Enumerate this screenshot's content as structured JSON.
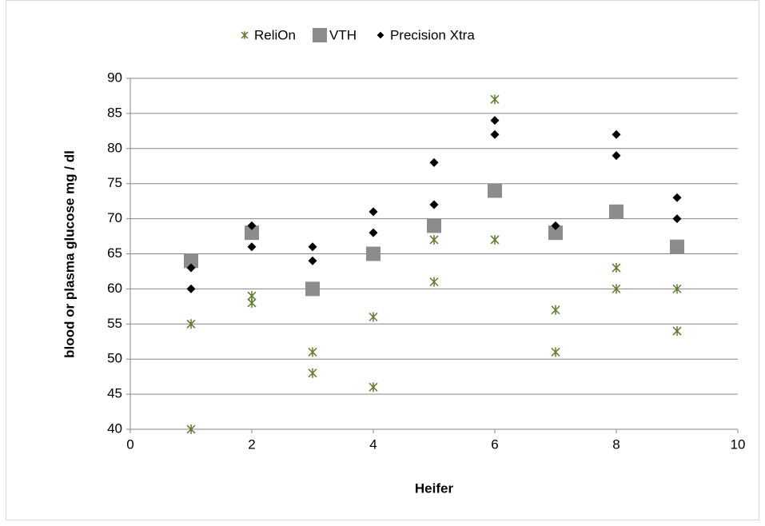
{
  "chart_data": {
    "type": "scatter",
    "x_label": "Heifer",
    "y_label": "blood or plasma glucose mg / dl",
    "xlim": [
      0,
      10
    ],
    "xticks": [
      0,
      2,
      4,
      6,
      8,
      10
    ],
    "ylim": [
      40,
      90
    ],
    "yticks": [
      40,
      45,
      50,
      55,
      60,
      65,
      70,
      75,
      80,
      85,
      90
    ],
    "grid": true,
    "legend": "top",
    "series": [
      {
        "name": "ReliOn",
        "color": "#5f7a30",
        "marker": "star",
        "x": [
          1,
          1,
          2,
          2,
          3,
          3,
          4,
          4,
          5,
          5,
          6,
          6,
          7,
          7,
          8,
          8,
          9,
          9
        ],
        "values": [
          55,
          40,
          59,
          58,
          51,
          48,
          56,
          46,
          67,
          61,
          87,
          67,
          57,
          51,
          63,
          60,
          60,
          54
        ]
      },
      {
        "name": "VTH",
        "color": "#8c8c8c",
        "marker": "square",
        "x": [
          1,
          2,
          3,
          4,
          5,
          6,
          7,
          8,
          9
        ],
        "values": [
          64,
          68,
          60,
          65,
          69,
          74,
          68,
          71,
          66
        ]
      },
      {
        "name": "Precision Xtra",
        "color": "#000000",
        "marker": "diamond",
        "x": [
          1,
          1,
          2,
          2,
          3,
          3,
          4,
          4,
          5,
          5,
          6,
          6,
          7,
          8,
          8,
          9,
          9
        ],
        "values": [
          63,
          60,
          69,
          66,
          66,
          64,
          71,
          68,
          78,
          72,
          84,
          82,
          69,
          82,
          79,
          73,
          70
        ]
      }
    ]
  }
}
